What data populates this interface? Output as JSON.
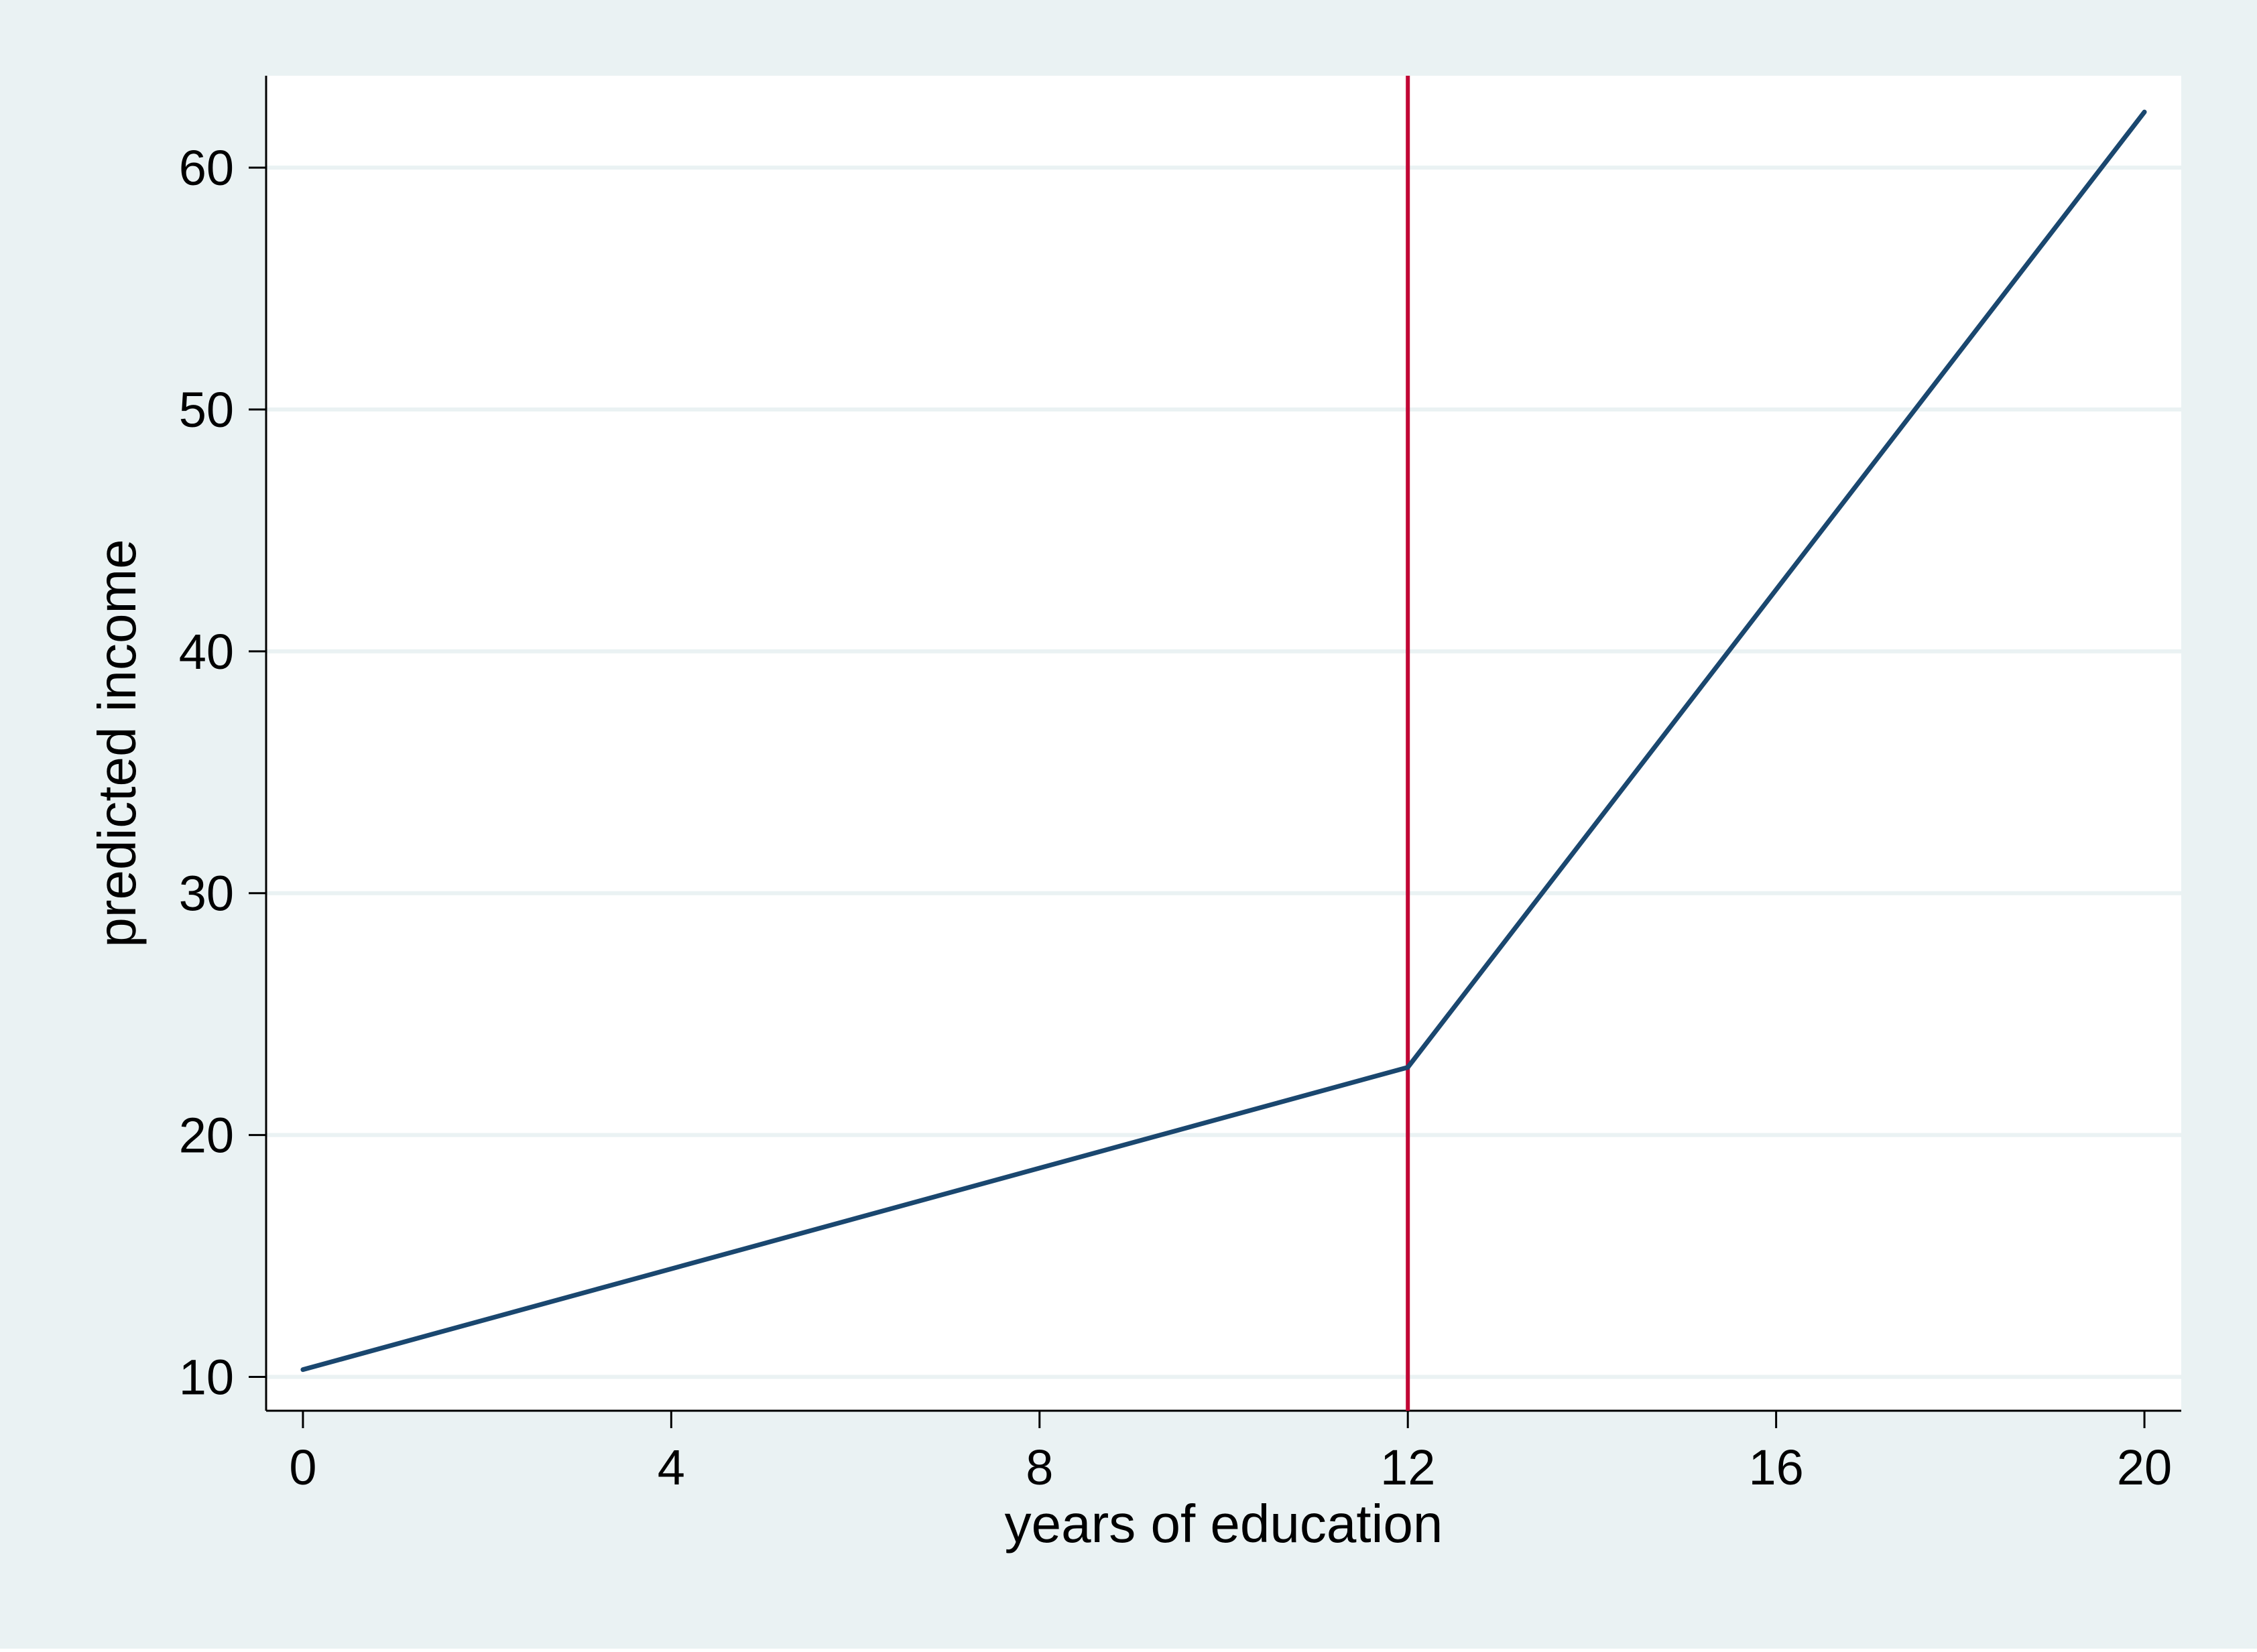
{
  "chart_data": {
    "type": "line",
    "title": "",
    "xlabel": "years of education",
    "ylabel": "predicted income",
    "xlim": [
      -0.4,
      20.4
    ],
    "ylim": [
      8.6,
      63.8
    ],
    "xticks": [
      0,
      4,
      8,
      12,
      16,
      20
    ],
    "yticks": [
      10,
      20,
      30,
      40,
      50,
      60
    ],
    "grid": "horizontal",
    "series": [
      {
        "x": [
          0,
          12,
          20
        ],
        "y": [
          10.3,
          22.8,
          62.3
        ],
        "color": "#1a476f"
      }
    ],
    "reference_lines": [
      {
        "axis": "x",
        "value": 12,
        "color": "#c10534"
      }
    ],
    "colors": {
      "outer_background": "#eaf2f3",
      "plot_background": "#ffffff",
      "grid": "#eaf2f3",
      "axis": "#000000"
    }
  }
}
